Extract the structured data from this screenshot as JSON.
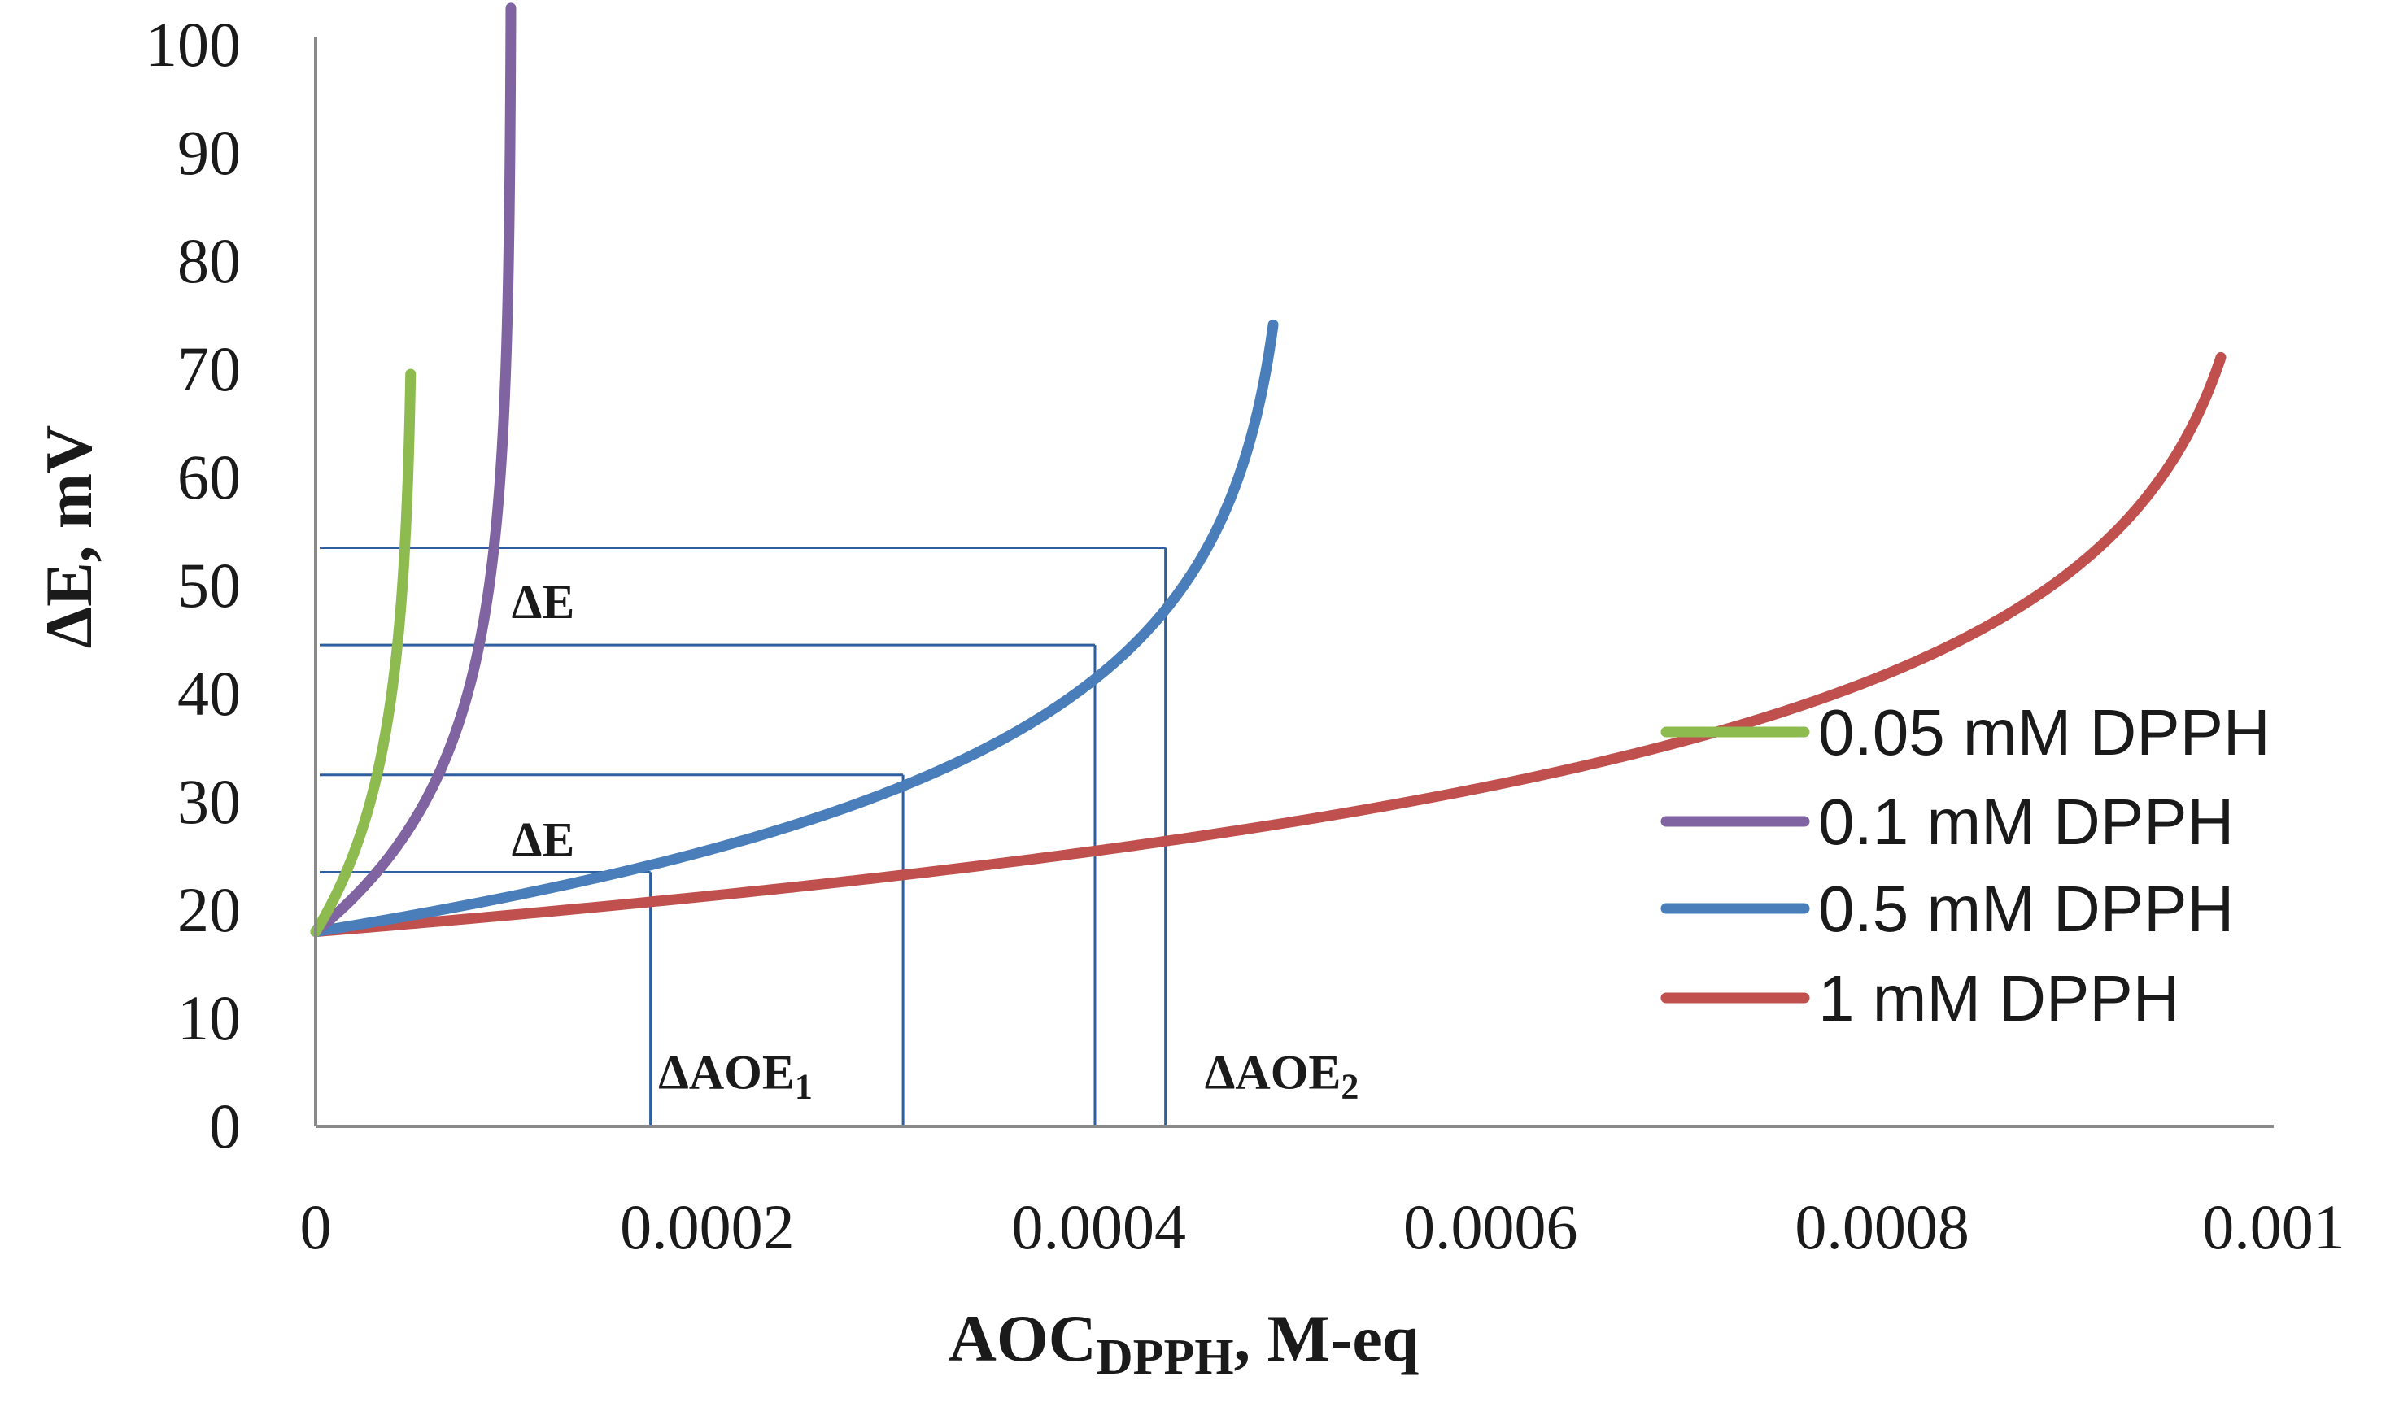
{
  "chart_data": {
    "type": "line",
    "title": "",
    "xlabel_main": "AOC",
    "xlabel_sub": "DPPH",
    "xlabel_rest": ", M-eq",
    "ylabel": "ΔE, mV",
    "xlim": [
      0,
      0.001
    ],
    "ylim": [
      0,
      100
    ],
    "xticks": [
      0,
      0.0002,
      0.0004,
      0.0006,
      0.0008,
      0.001
    ],
    "xtick_labels": [
      "0",
      "0.0002",
      "0.0004",
      "0.0006",
      "0.0008",
      "0.001"
    ],
    "yticks": [
      0,
      10,
      20,
      30,
      40,
      50,
      60,
      70,
      80,
      90,
      100
    ],
    "ytick_labels": [
      "0",
      "10",
      "20",
      "30",
      "40",
      "50",
      "60",
      "70",
      "80",
      "90",
      "100"
    ],
    "grid": false,
    "legend_position": "right",
    "series": [
      {
        "name": "0.05 mM DPPH",
        "color": "#8dbb4f",
        "cap": 5e-05,
        "x_max": 4.85e-05
      },
      {
        "name": "0.1 mM DPPH",
        "color": "#8064a2",
        "cap": 0.0001,
        "x_max": 9.97e-05
      },
      {
        "name": "0.5 mM DPPH",
        "color": "#4a7ebb",
        "cap": 0.0005,
        "x_max": 0.000489
      },
      {
        "name": "1 mM DPPH",
        "color": "#c0504d",
        "cap": 0.001,
        "x_max": 0.000973
      }
    ],
    "model": {
      "e0": 18,
      "k": 14.7
    },
    "guide_lines": {
      "color": "#2e5fa0",
      "horizontal": [
        {
          "y": 53.5,
          "x_end": 0.000434
        },
        {
          "y": 44.5,
          "x_end": 0.000398
        },
        {
          "y": 32.5,
          "x_end": 0.0003
        },
        {
          "y": 23.5,
          "x_end": 0.000171
        }
      ],
      "vertical": [
        {
          "x": 0.000171,
          "y_top": 23.5
        },
        {
          "x": 0.0003,
          "y_top": 32.5
        },
        {
          "x": 0.000398,
          "y_top": 44.5
        },
        {
          "x": 0.000434,
          "y_top": 53.5
        }
      ]
    },
    "annotations": [
      {
        "id": "delta-e-upper",
        "text": "ΔE",
        "sub": "",
        "x": 0.0001,
        "y": 48.5
      },
      {
        "id": "delta-e-lower",
        "text": "ΔE",
        "sub": "",
        "x": 0.0001,
        "y": 26.5
      },
      {
        "id": "delta-aoe-1",
        "text": "ΔAOE",
        "sub": "1",
        "x": 0.000175,
        "y": 5
      },
      {
        "id": "delta-aoe-2",
        "text": "ΔAOE",
        "sub": "2",
        "x": 0.000454,
        "y": 5
      }
    ]
  }
}
